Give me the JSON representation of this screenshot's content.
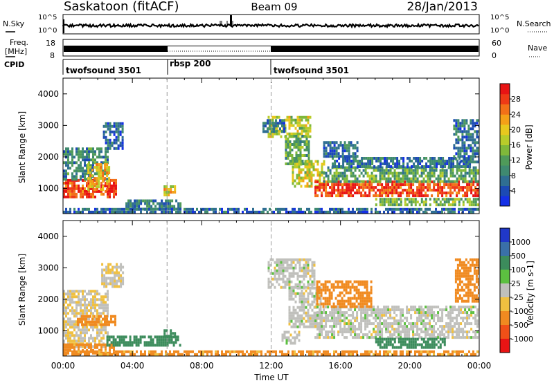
{
  "header": {
    "station": "Saskatoon (fitACF)",
    "beam": "Beam 09",
    "date": "28/Jan/2013"
  },
  "aux": {
    "nsky_label": "N.Sky",
    "nsky_ticks": [
      "10^5",
      "10^0"
    ],
    "nsearch_label": "N.Search",
    "freq_label_1": "Freq.",
    "freq_label_2": "[MHz]",
    "freq_ticks": [
      "18",
      "8"
    ],
    "nave_label": "Nave",
    "nave_ticks": [
      "60",
      "0"
    ],
    "cpid_label": "CPID",
    "cpid_segments": [
      {
        "name": "twofsound 3501",
        "start_h": 0,
        "end_h": 6
      },
      {
        "name": "rbsp 200",
        "start_h": 6,
        "end_h": 12
      },
      {
        "name": "twofsound 3501",
        "start_h": 12,
        "end_h": 24
      }
    ]
  },
  "chart_data": [
    {
      "type": "heatmap",
      "title": "",
      "xlabel": "Time UT",
      "ylabel": "Slant Range [km]",
      "xlim": [
        0,
        24
      ],
      "ylim": [
        200,
        4500
      ],
      "x_ticks": [
        "00:00",
        "04:00",
        "08:00",
        "12:00",
        "16:00",
        "20:00",
        "00:00"
      ],
      "y_ticks": [
        1000,
        2000,
        3000,
        4000
      ],
      "colorbar": {
        "label": "Power [dB]",
        "range": [
          0,
          32
        ],
        "ticks": [
          4,
          8,
          12,
          16,
          20,
          24,
          28
        ],
        "colors": [
          "#1530e6",
          "#1c4ab4",
          "#2f6e92",
          "#3f8a70",
          "#4f9a5a",
          "#7fb83a",
          "#b8cc2a",
          "#e8c81e",
          "#f4a018",
          "#f27018",
          "#ee3a16",
          "#e81414"
        ]
      },
      "regions": [
        {
          "t0": 0.0,
          "t1": 3.0,
          "r0": 750,
          "r1": 1300,
          "level": 28
        },
        {
          "t0": 0.0,
          "t1": 2.6,
          "r0": 1300,
          "r1": 2300,
          "level": 9
        },
        {
          "t0": 1.4,
          "t1": 2.6,
          "r0": 1000,
          "r1": 1800,
          "level": 21
        },
        {
          "t0": 2.3,
          "t1": 3.4,
          "r0": 2300,
          "r1": 3100,
          "level": 6
        },
        {
          "t0": 3.6,
          "t1": 6.8,
          "r0": 350,
          "r1": 650,
          "level": 8
        },
        {
          "t0": 5.8,
          "t1": 6.5,
          "r0": 800,
          "r1": 1100,
          "level": 20
        },
        {
          "t0": 11.8,
          "t1": 14.2,
          "r0": 2600,
          "r1": 3300,
          "level": 17
        },
        {
          "t0": 11.5,
          "t1": 12.8,
          "r0": 2800,
          "r1": 3200,
          "level": 7
        },
        {
          "t0": 12.8,
          "t1": 14.2,
          "r0": 1800,
          "r1": 2700,
          "level": 12
        },
        {
          "t0": 13.2,
          "t1": 15.0,
          "r0": 1100,
          "r1": 1900,
          "level": 18
        },
        {
          "t0": 14.5,
          "t1": 24.0,
          "r0": 800,
          "r1": 1250,
          "level": 28
        },
        {
          "t0": 15.0,
          "t1": 24.0,
          "r0": 1250,
          "r1": 1700,
          "level": 12
        },
        {
          "t0": 15.5,
          "t1": 23.5,
          "r0": 1700,
          "r1": 2000,
          "level": 7
        },
        {
          "t0": 15.0,
          "t1": 17.0,
          "r0": 2000,
          "r1": 2500,
          "level": 7
        },
        {
          "t0": 22.5,
          "t1": 24.0,
          "r0": 1800,
          "r1": 3200,
          "level": 7
        },
        {
          "t0": 18.0,
          "t1": 24.0,
          "r0": 450,
          "r1": 700,
          "level": 14
        },
        {
          "t0": 0.0,
          "t1": 24.0,
          "r0": 200,
          "r1": 380,
          "level": 6
        }
      ]
    },
    {
      "type": "heatmap",
      "title": "",
      "xlabel": "Time UT",
      "ylabel": "Slant Range [km]",
      "xlim": [
        0,
        24
      ],
      "ylim": [
        200,
        4500
      ],
      "x_ticks": [
        "00:00",
        "04:00",
        "08:00",
        "12:00",
        "16:00",
        "20:00",
        "00:00"
      ],
      "y_ticks": [
        1000,
        2000,
        3000,
        4000
      ],
      "colorbar": {
        "label": "Velocity [m s-1]",
        "tick_labels": [
          "1000",
          "500",
          "100",
          "25",
          "-25",
          "-100",
          "-500",
          "-1000"
        ],
        "colors": [
          "#2038c8",
          "#3a70a8",
          "#3c8c5c",
          "#5cc040",
          "#c0c0bc",
          "#f0c040",
          "#f08a20",
          "#f05018",
          "#e81414"
        ]
      },
      "regions": [
        {
          "t0": 0.0,
          "t1": 2.6,
          "r0": 500,
          "r1": 2300,
          "velocity": -20
        },
        {
          "t0": 2.2,
          "t1": 3.4,
          "r0": 2400,
          "r1": 3150,
          "velocity": -20
        },
        {
          "t0": 0.8,
          "t1": 3.0,
          "r0": 1200,
          "r1": 1500,
          "velocity": -150
        },
        {
          "t0": 0.0,
          "t1": 3.0,
          "r0": 250,
          "r1": 600,
          "velocity": -150
        },
        {
          "t0": 2.5,
          "t1": 6.8,
          "r0": 550,
          "r1": 850,
          "velocity": 200
        },
        {
          "t0": 5.8,
          "t1": 6.5,
          "r0": 850,
          "r1": 1050,
          "velocity": 180
        },
        {
          "t0": 0.0,
          "t1": 24.0,
          "r0": 200,
          "r1": 380,
          "velocity": -120
        },
        {
          "t0": 11.8,
          "t1": 14.5,
          "r0": 2400,
          "r1": 3300,
          "velocity": 0
        },
        {
          "t0": 13.0,
          "t1": 14.8,
          "r0": 1100,
          "r1": 2400,
          "velocity": 0
        },
        {
          "t0": 14.5,
          "t1": 24.0,
          "r0": 800,
          "r1": 1800,
          "velocity": 0
        },
        {
          "t0": 14.6,
          "t1": 17.8,
          "r0": 1800,
          "r1": 2600,
          "velocity": -200
        },
        {
          "t0": 18.0,
          "t1": 22.0,
          "r0": 500,
          "r1": 780,
          "velocity": 180
        },
        {
          "t0": 22.6,
          "t1": 24.0,
          "r0": 1900,
          "r1": 3300,
          "velocity": -200
        },
        {
          "t0": 12.6,
          "t1": 13.6,
          "r0": 600,
          "r1": 1000,
          "velocity": 0
        }
      ]
    }
  ]
}
